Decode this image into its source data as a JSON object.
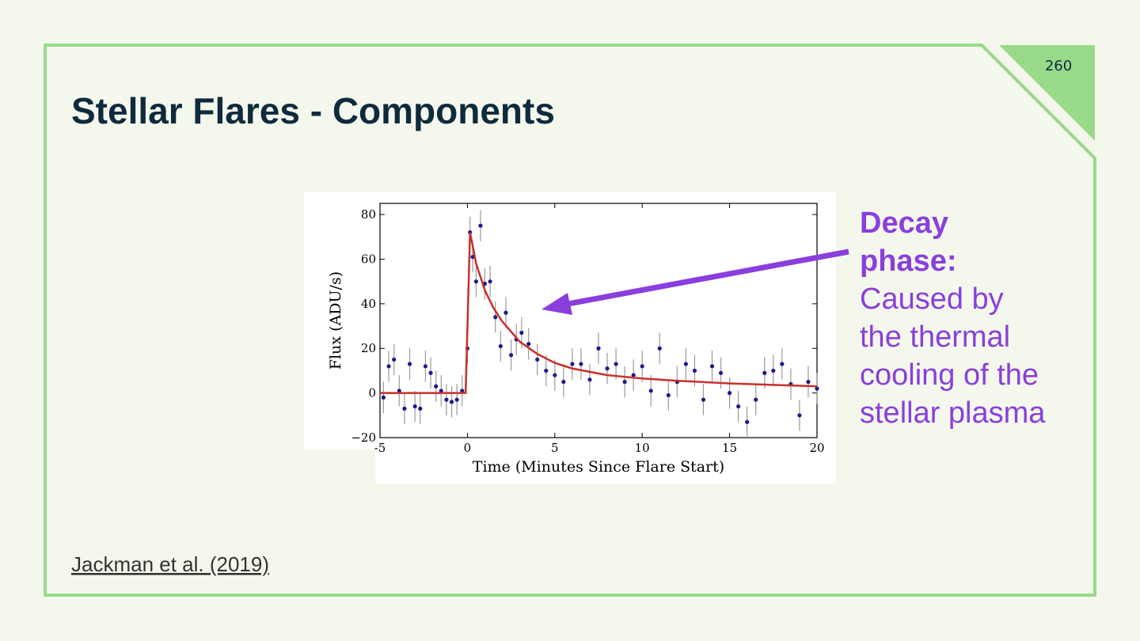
{
  "slide": {
    "title": "Stellar Flares - Components",
    "page_number": "260",
    "citation": "Jackman et al. (2019)",
    "callout": {
      "heading": "Decay phase:",
      "body": "Caused by the thermal cooling of the stellar plasma"
    }
  },
  "chart_data": {
    "type": "scatter",
    "xlabel": "Time (Minutes Since Flare Start)",
    "ylabel": "Flux (ADU/s)",
    "xlim": [
      -5,
      20
    ],
    "ylim": [
      -20,
      85
    ],
    "xticks": [
      -5,
      0,
      5,
      10,
      15,
      20
    ],
    "yticks": [
      {
        "value": -20,
        "label": "−20"
      },
      0,
      20,
      40,
      60,
      80
    ],
    "series": [
      {
        "type": "scatter",
        "color": "#1a1a8c",
        "yerr": 7,
        "x": [
          -4.8,
          -4.5,
          -4.2,
          -3.9,
          -3.6,
          -3.3,
          -3,
          -2.7,
          -2.4,
          -2.1,
          -1.8,
          -1.5,
          -1.2,
          -0.9,
          -0.6,
          -0.3,
          0,
          0.15,
          0.3,
          0.5,
          0.75,
          1,
          1.3,
          1.6,
          1.9,
          2.2,
          2.5,
          2.8,
          3.1,
          3.5,
          4,
          4.5,
          5,
          5.5,
          6,
          6.5,
          7,
          7.5,
          8,
          8.5,
          9,
          9.5,
          10,
          10.5,
          11,
          11.5,
          12,
          12.5,
          13,
          13.5,
          14,
          14.5,
          15,
          15.5,
          16,
          16.5,
          17,
          17.5,
          18,
          18.5,
          19,
          19.5,
          20
        ],
        "values": [
          -2,
          12,
          15,
          1,
          -7,
          13,
          -6,
          -7,
          12,
          9,
          3,
          1,
          -3,
          -4,
          -3,
          1,
          20,
          72,
          61,
          50,
          75,
          49,
          50,
          34,
          21,
          36,
          17,
          24,
          27,
          22,
          15,
          10,
          8,
          5,
          13,
          13,
          6,
          20,
          11,
          13,
          5,
          8,
          12,
          1,
          20,
          -1,
          5,
          13,
          10,
          -3,
          12,
          9,
          0,
          -6,
          -13,
          -3,
          9,
          10,
          13,
          4,
          -10,
          5,
          2
        ]
      },
      {
        "type": "line",
        "color": "#c8302c",
        "x": [
          -5,
          -0.1,
          0.15,
          0.5,
          1,
          1.5,
          2,
          3,
          4,
          5,
          6,
          8,
          10,
          12,
          15,
          18,
          20
        ],
        "values": [
          0,
          0,
          72,
          58,
          46,
          38,
          32,
          23,
          17.5,
          13.5,
          11,
          8,
          6.5,
          5.5,
          4.3,
          3.5,
          3
        ]
      }
    ]
  }
}
